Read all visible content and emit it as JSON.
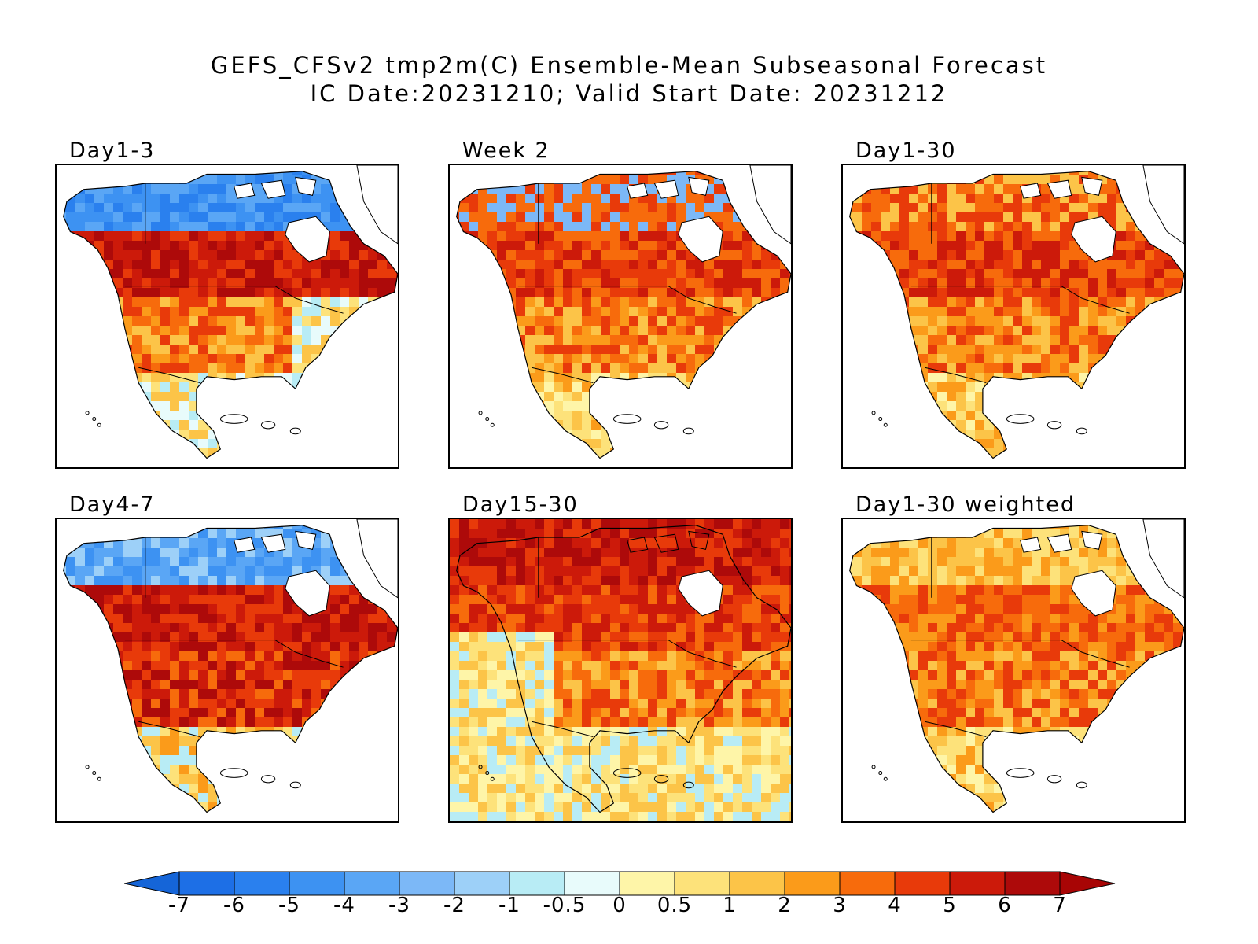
{
  "title": {
    "line1": "GEFS_CFSv2 tmp2m(C) Ensemble-Mean Subseasonal Forecast",
    "line2": "IC Date:20231210; Valid Start Date: 20231212"
  },
  "panels": [
    {
      "label": "Day1-3",
      "scheme": "day1_3"
    },
    {
      "label": "Week 2",
      "scheme": "week2"
    },
    {
      "label": "Day1-30",
      "scheme": "day1_30"
    },
    {
      "label": "Day4-7",
      "scheme": "day4_7"
    },
    {
      "label": "Day15-30",
      "scheme": "day15_30"
    },
    {
      "label": "Day1-30 weighted",
      "scheme": "day1_30w"
    }
  ],
  "colorbar": {
    "labels": [
      "-7",
      "-6",
      "-5",
      "-4",
      "-3",
      "-2",
      "-1",
      "-0.5",
      "0",
      "0.5",
      "1",
      "2",
      "3",
      "4",
      "5",
      "6",
      "7"
    ],
    "colors": [
      "#1d6fe6",
      "#2a80ee",
      "#3d92f2",
      "#5aa6f5",
      "#7cb8f7",
      "#9dd0f8",
      "#b8ecf5",
      "#e8fbfb",
      "#fef5a8",
      "#fde27a",
      "#fcc448",
      "#fb9b1a",
      "#f76b0c",
      "#e83a0a",
      "#cc1a0a",
      "#ad0a0a"
    ],
    "under_color": "#1565d8",
    "over_color": "#a80505"
  }
}
